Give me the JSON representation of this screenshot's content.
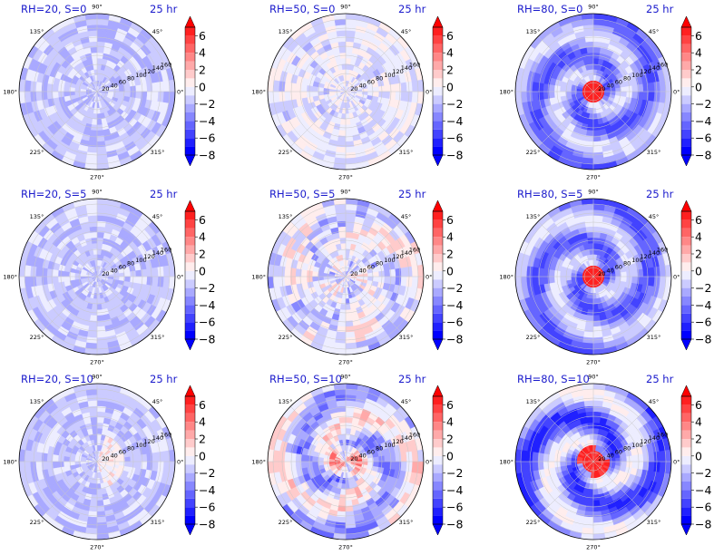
{
  "chart_data": [
    {
      "type": "heatmap",
      "title": "RH=20, S=0",
      "time_label": "25 hr",
      "pattern": "bluish"
    },
    {
      "type": "heatmap",
      "title": "RH=50, S=0",
      "time_label": "25 hr",
      "pattern": "mixed-weak"
    },
    {
      "type": "heatmap",
      "title": "RH=80, S=0",
      "time_label": "25 hr",
      "pattern": "spiral-core"
    },
    {
      "type": "heatmap",
      "title": "RH=20, S=5",
      "time_label": "25 hr",
      "pattern": "bluish"
    },
    {
      "type": "heatmap",
      "title": "RH=50, S=5",
      "time_label": "25 hr",
      "pattern": "mixed"
    },
    {
      "type": "heatmap",
      "title": "RH=80, S=5",
      "time_label": "25 hr",
      "pattern": "spiral-core"
    },
    {
      "type": "heatmap",
      "title": "RH=20, S=10",
      "time_label": "25 hr",
      "pattern": "bluish-patch"
    },
    {
      "type": "heatmap",
      "title": "RH=50, S=10",
      "time_label": "25 hr",
      "pattern": "mixed-strong"
    },
    {
      "type": "heatmap",
      "title": "RH=80, S=10",
      "time_label": "25 hr",
      "pattern": "spiral-strong"
    }
  ],
  "angle_labels": [
    "0°",
    "45°",
    "90°",
    "135°",
    "180°",
    "225°",
    "270°",
    "315°"
  ],
  "radial_labels": [
    "20",
    "40",
    "60",
    "80",
    "100",
    "120",
    "140",
    "160"
  ],
  "colorbar": {
    "ticks": [
      "6",
      "4",
      "2",
      "0",
      "−2",
      "−4",
      "−6",
      "−8"
    ],
    "tick_values": [
      6,
      4,
      2,
      0,
      -2,
      -4,
      -6,
      -8
    ],
    "vmin": -8,
    "vmax": 7,
    "colors_neg": [
      "#0000ff",
      "#2020ff",
      "#4343ff",
      "#6565ff",
      "#8787ff",
      "#a9a9ff",
      "#cbcbff",
      "#ededff"
    ],
    "colors_pos": [
      "#ffeded",
      "#ffcbcb",
      "#ffa9a9",
      "#ff8787",
      "#ff6565",
      "#ff4343",
      "#ff2020",
      "#ff0000"
    ]
  },
  "colors": {
    "title": "#1a1acc",
    "grid": "#c8c8c8"
  }
}
